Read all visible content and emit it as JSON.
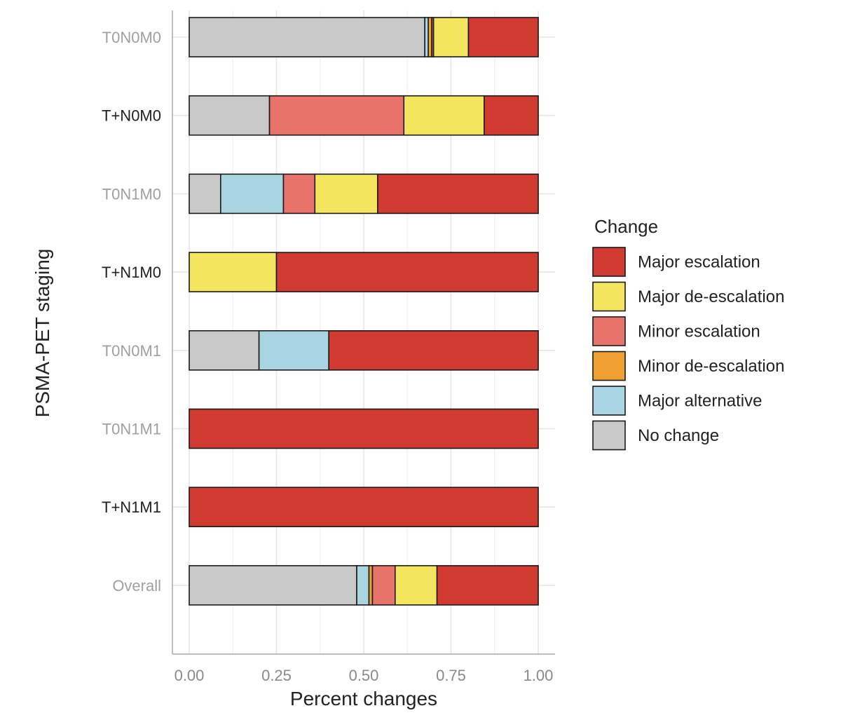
{
  "chart_data": {
    "type": "bar",
    "orientation": "horizontal",
    "stacked": true,
    "xlabel": "Percent changes",
    "ylabel": "PSMA-PET staging",
    "xlim": [
      0,
      1
    ],
    "x_ticks": [
      "0.00",
      "0.25",
      "0.50",
      "0.75",
      "1.00"
    ],
    "x_tick_values": [
      0,
      0.25,
      0.5,
      0.75,
      1.0
    ],
    "grid": true,
    "legend_position": "right",
    "categories": [
      "T0N0M0",
      "T+N0M0",
      "T0N1M0",
      "T+N1M0",
      "T0N0M1",
      "T0N1M1",
      "T+N1M1",
      "Overall"
    ],
    "category_colors": [
      "#a0a0a0",
      "#222222",
      "#a0a0a0",
      "#222222",
      "#a0a0a0",
      "#a0a0a0",
      "#222222",
      "#a0a0a0"
    ],
    "legend": {
      "title": "Change",
      "entries": [
        "Major escalation",
        "Major de-escalation",
        "Minor escalation",
        "Minor de-escalation",
        "Major alternative",
        "No change"
      ]
    },
    "stack_order": [
      "No change",
      "Major alternative",
      "Minor de-escalation",
      "Minor escalation",
      "Major de-escalation",
      "Major escalation"
    ],
    "series": [
      {
        "name": "No change",
        "color": "#c9c9c9",
        "values": [
          0.675,
          0.23,
          0.09,
          0,
          0.2,
          0,
          0,
          0.48
        ]
      },
      {
        "name": "Major alternative",
        "color": "#a9d4e2",
        "values": [
          0.01,
          0,
          0.18,
          0,
          0.2,
          0,
          0,
          0.035
        ]
      },
      {
        "name": "Minor de-escalation",
        "color": "#f0a030",
        "values": [
          0.01,
          0,
          0,
          0,
          0,
          0,
          0,
          0.01
        ]
      },
      {
        "name": "Minor escalation",
        "color": "#e8736b",
        "values": [
          0.005,
          0.385,
          0.09,
          0,
          0,
          0,
          0,
          0.065
        ]
      },
      {
        "name": "Major de-escalation",
        "color": "#f3e65e",
        "values": [
          0.1,
          0.23,
          0.18,
          0.25,
          0,
          0,
          0,
          0.12
        ]
      },
      {
        "name": "Major escalation",
        "color": "#d03a30",
        "values": [
          0.2,
          0.155,
          0.46,
          0.75,
          0.6,
          1.0,
          1.0,
          0.29
        ]
      }
    ]
  }
}
